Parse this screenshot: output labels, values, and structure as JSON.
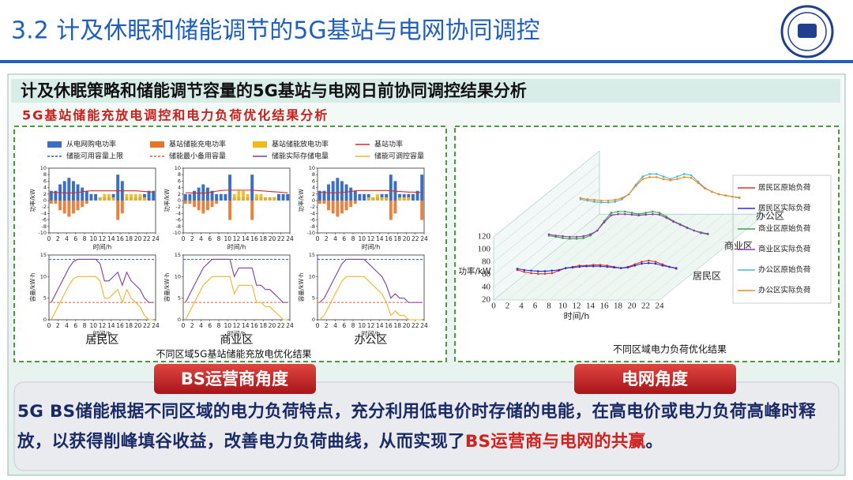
{
  "header": {
    "title": "3.2 计及休眠和储能调节的5G基站与电网协同调控"
  },
  "banner": {
    "title": "计及休眠策略和储能调节容量的5G基站与电网日前协同调控结果分析"
  },
  "section_title": "5G基站储能充放电调控和电力负荷优化结果分析",
  "storage_figure": {
    "legend": [
      {
        "name": "从电网购电功率",
        "color": "#3a6fc4",
        "mark": "bar"
      },
      {
        "name": "基站储能充电功率",
        "color": "#e8742a",
        "mark": "bar"
      },
      {
        "name": "基站储能放电功率",
        "color": "#f2b81c",
        "mark": "bar"
      },
      {
        "name": "基站功率",
        "color": "#d62728",
        "mark": "line"
      },
      {
        "name": "储能可用容量上限",
        "color": "#2a5fbf",
        "mark": "dashed"
      },
      {
        "name": "储能最小备用容量",
        "color": "#d9603b",
        "mark": "dashed"
      },
      {
        "name": "储能实际存储电量",
        "color": "#7b3fa0",
        "mark": "line"
      },
      {
        "name": "储能可调控容量",
        "color": "#f0b429",
        "mark": "line"
      }
    ],
    "power_axis": {
      "y_label": "功率/kW",
      "x_label": "时间/h",
      "xlim": [
        0,
        24
      ],
      "xticks": [
        0,
        2,
        4,
        6,
        8,
        10,
        12,
        14,
        16,
        18,
        20,
        22,
        24
      ],
      "ylim": [
        -10,
        10
      ],
      "yticks": [
        -10,
        -8,
        -6,
        -4,
        -2,
        0,
        2,
        4,
        6,
        8,
        10
      ]
    },
    "energy_axis": {
      "y_label": "容量/kW·h",
      "x_label": "时间/h",
      "xlim": [
        0,
        24
      ],
      "xticks": [
        0,
        2,
        4,
        6,
        8,
        10,
        12,
        14,
        16,
        18,
        20,
        22,
        24
      ],
      "ylim": [
        0,
        15
      ],
      "yticks": [
        0,
        5,
        10,
        15
      ]
    },
    "areas": [
      {
        "name": "居民区",
        "grid": [
          3,
          3,
          5,
          6,
          7,
          6,
          5,
          4,
          3,
          2,
          2,
          1,
          1,
          1,
          2,
          8,
          6,
          1,
          1,
          1,
          1,
          2,
          3,
          3
        ],
        "storage_power": [
          -1,
          -1,
          -3,
          -4,
          -5,
          -4,
          -3,
          -2,
          -1,
          0,
          0,
          1,
          2,
          2,
          1,
          -6,
          -4,
          2,
          2,
          2,
          2,
          1,
          0,
          0
        ],
        "bs_power": [
          2.5,
          2.5,
          2.4,
          2.4,
          2.3,
          2.4,
          2.5,
          2.7,
          2.9,
          3,
          3,
          3,
          3,
          3,
          3,
          3,
          3,
          3,
          3,
          3,
          2.9,
          2.8,
          2.7,
          2.6
        ],
        "capacity_max": 14,
        "capacity_min": 4,
        "stored": [
          4,
          6,
          8,
          10,
          12,
          13.5,
          14,
          14,
          14,
          14,
          14,
          13,
          9,
          9,
          10,
          11,
          8,
          11,
          9,
          8,
          7,
          5,
          4,
          4
        ],
        "adjustable": [
          0,
          2,
          4,
          6,
          8,
          9.5,
          10,
          10,
          10,
          10,
          10,
          9,
          5,
          5,
          6,
          7,
          4,
          7,
          5,
          4,
          3,
          1,
          0,
          0
        ]
      },
      {
        "name": "商业区",
        "grid": [
          2,
          2,
          3,
          4,
          5,
          4,
          3,
          2,
          2,
          2,
          8,
          1,
          1,
          1,
          1,
          8,
          1,
          1,
          1,
          1,
          1,
          2,
          2,
          2
        ],
        "storage_power": [
          -1,
          -1,
          -2,
          -3,
          -4,
          -3,
          -2,
          -1,
          0,
          0,
          -6,
          2,
          3,
          3,
          2,
          -6,
          2,
          2,
          1,
          1,
          1,
          0,
          0,
          0
        ],
        "bs_power": [
          2.4,
          2.4,
          2.3,
          2.3,
          2.3,
          2.4,
          2.6,
          2.9,
          3.1,
          3.2,
          3.2,
          3.2,
          3.2,
          3.2,
          3.2,
          3.2,
          3.1,
          3,
          2.9,
          2.8,
          2.7,
          2.6,
          2.5,
          2.4
        ],
        "capacity_max": 14,
        "capacity_min": 4,
        "stored": [
          4,
          6,
          8,
          10,
          12,
          13,
          14,
          14,
          14,
          14,
          14,
          10,
          12,
          12,
          12,
          12,
          8,
          8,
          7,
          7,
          6,
          5,
          4,
          4
        ],
        "adjustable": [
          0,
          2,
          4,
          6,
          8,
          9,
          10,
          10,
          10,
          10,
          10,
          6,
          8,
          8,
          8,
          8,
          4,
          4,
          3,
          3,
          2,
          1,
          0,
          0
        ]
      },
      {
        "name": "办公区",
        "grid": [
          3,
          3,
          5,
          6,
          7,
          6,
          5,
          4,
          3,
          2,
          2,
          2,
          1,
          1,
          2,
          2,
          8,
          6,
          2,
          2,
          2,
          2,
          3,
          8
        ],
        "storage_power": [
          -1,
          -1,
          -3,
          -4,
          -5,
          -4,
          -3,
          -2,
          -1,
          0,
          0,
          1,
          1,
          2,
          1,
          1,
          -6,
          -4,
          1,
          1,
          1,
          0,
          0,
          -6
        ],
        "bs_power": [
          2.5,
          2.5,
          2.4,
          2.4,
          2.4,
          2.5,
          2.6,
          2.8,
          3,
          3.1,
          3.1,
          3.1,
          3.1,
          3.1,
          3.1,
          3.1,
          3,
          2.9,
          2.8,
          2.7,
          2.6,
          2.6,
          2.5,
          2.5
        ],
        "capacity_max": 14,
        "capacity_min": 4,
        "stored": [
          4,
          5,
          7,
          9,
          11,
          13,
          14,
          14,
          14,
          14,
          14,
          13,
          12,
          11,
          10,
          8,
          5,
          6,
          5,
          5,
          4,
          4,
          4,
          4
        ],
        "adjustable": [
          0,
          1,
          3,
          5,
          7,
          9,
          10,
          10,
          10,
          10,
          10,
          9,
          8,
          7,
          6,
          4,
          1,
          2,
          1,
          1,
          0,
          0,
          0,
          0
        ]
      }
    ],
    "caption": "不同区域5G基站储能充放电优化结果"
  },
  "load_figure": {
    "y_label": "功率/kW",
    "x_label": "时间/h",
    "xlim": [
      0,
      24
    ],
    "xticks": [
      0,
      2,
      4,
      6,
      8,
      10,
      12,
      14,
      16,
      18,
      20,
      22,
      24
    ],
    "ylim": [
      20,
      120
    ],
    "yticks": [
      20,
      40,
      60,
      80,
      100,
      120
    ],
    "area_labels": [
      "居民区",
      "商业区",
      "办公区"
    ],
    "series": [
      {
        "name": "居民区原始负荷",
        "color": "#e0302a",
        "values": [
          55,
          52,
          50,
          49,
          49,
          50,
          54,
          58,
          60,
          62,
          62,
          63,
          63,
          62,
          60,
          58,
          60,
          64,
          68,
          70,
          68,
          64,
          60,
          57
        ]
      },
      {
        "name": "居民区实际负荷",
        "color": "#2b2bd6",
        "values": [
          57,
          55,
          54,
          53,
          53,
          54,
          55,
          58,
          59,
          60,
          61,
          61,
          61,
          60,
          59,
          58,
          59,
          62,
          65,
          66,
          65,
          62,
          60,
          58
        ]
      },
      {
        "name": "商业区原始负荷",
        "color": "#3aa04a",
        "values": [
          62,
          60,
          58,
          57,
          57,
          58,
          62,
          70,
          85,
          98,
          100,
          100,
          98,
          96,
          98,
          100,
          98,
          92,
          85,
          80,
          75,
          70,
          66,
          64
        ]
      },
      {
        "name": "商业区实际负荷",
        "color": "#8a3fb0",
        "values": [
          64,
          62,
          61,
          60,
          60,
          61,
          64,
          70,
          83,
          94,
          96,
          96,
          95,
          94,
          95,
          96,
          95,
          90,
          84,
          79,
          74,
          70,
          67,
          65
        ]
      },
      {
        "name": "办公区原始负荷",
        "color": "#4bb3d6",
        "values": [
          72,
          70,
          68,
          67,
          67,
          68,
          72,
          80,
          95,
          108,
          112,
          112,
          108,
          104,
          108,
          112,
          110,
          100,
          90,
          84,
          80,
          78,
          76,
          74
        ]
      },
      {
        "name": "办公区实际负荷",
        "color": "#f08a1c",
        "values": [
          74,
          72,
          71,
          70,
          70,
          71,
          74,
          80,
          93,
          104,
          107,
          107,
          104,
          102,
          104,
          107,
          106,
          98,
          89,
          84,
          80,
          78,
          76,
          75
        ]
      }
    ],
    "caption": "不同区域电力负荷优化结果"
  },
  "buttons": [
    "BS运营商角度",
    "电网角度"
  ],
  "conclusion": {
    "text": "5G BS储能根据不同区域的电力负荷特点，充分利用低电价时存储的电能，在高电价或电力负荷高峰时释放，以获得削峰填谷收益，改善电力负荷曲线，从而实现了",
    "highlight": "BS运营商与电网的共赢",
    "end": "。"
  }
}
